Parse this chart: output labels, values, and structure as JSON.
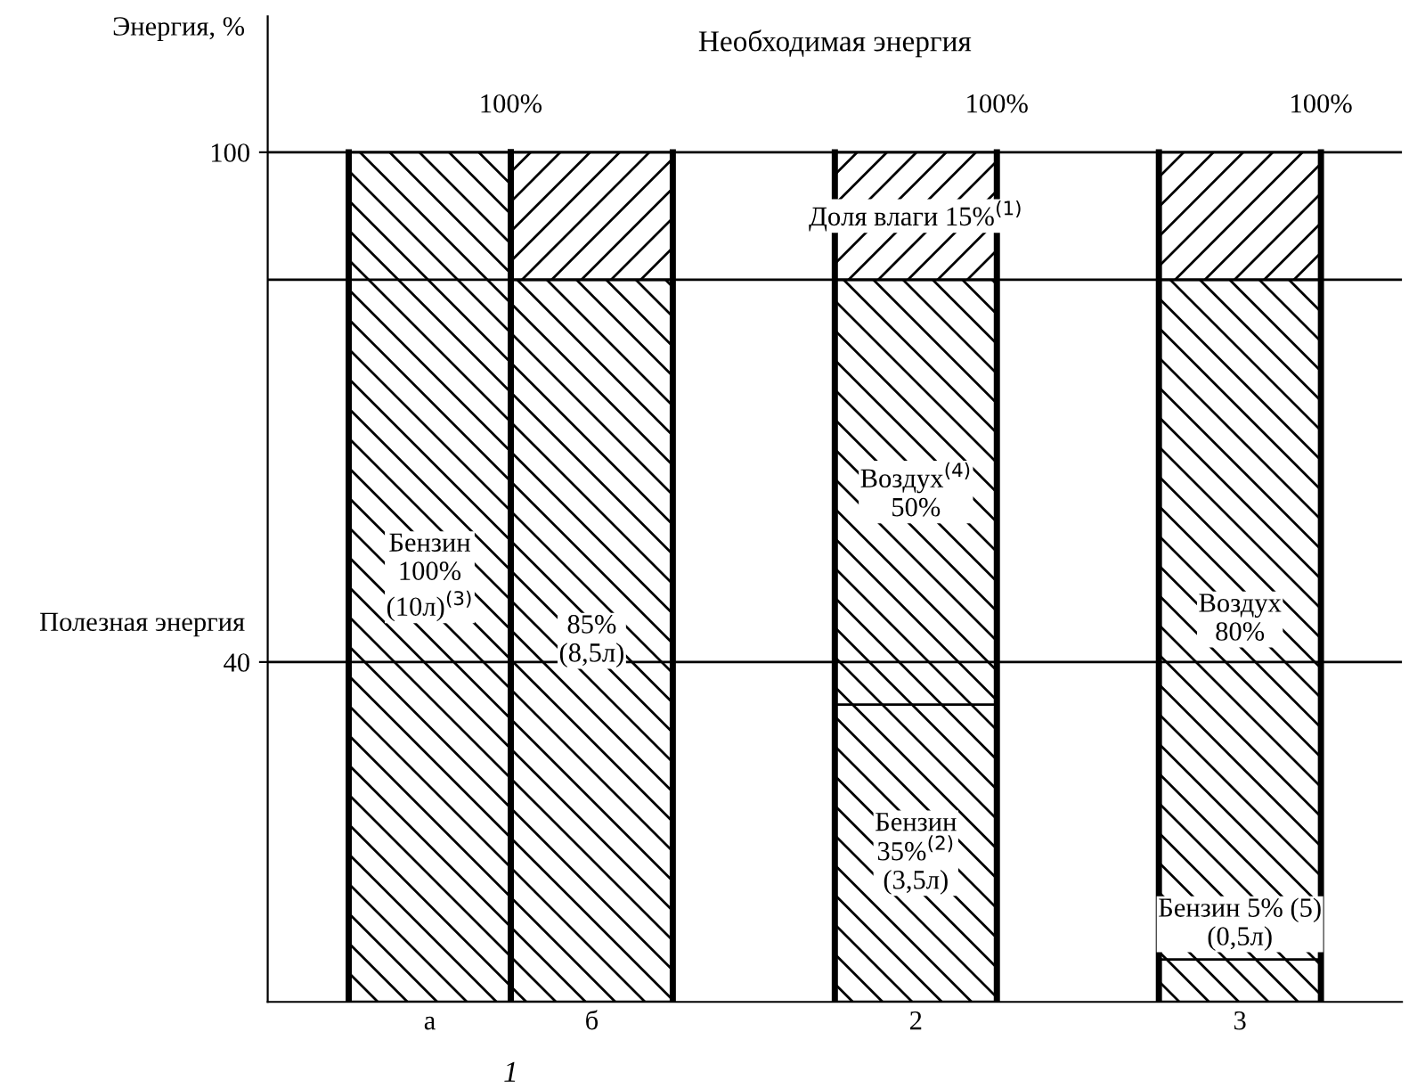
{
  "chart_data": {
    "type": "bar",
    "stacked": true,
    "title": "Необходимая энергия",
    "ylabel": "Энергия, %",
    "categories": [
      "а",
      "б",
      null,
      "2",
      null,
      "3"
    ],
    "series": [
      {
        "color": "#000000",
        "values": [
          100,
          85,
          null,
          35,
          null,
          5
        ],
        "value_labels": [
          "Бензин\n100%\n(10л)$^{(3)}$",
          "85%\n(8,5л)",
          null,
          "Бензин\n35%$^{(2)}$\n(3,5л)",
          null,
          "Бензин 5% (5)\n(0,5л)"
        ]
      },
      {
        "color": "#000000",
        "values": [
          null,
          null,
          null,
          50,
          null,
          80
        ],
        "value_labels": [
          null,
          null,
          null,
          "Воздух$^{(4)}$\n50%",
          null,
          "Воздух\n80%"
        ]
      },
      {
        "color": "#000000",
        "values": [
          null,
          15,
          null,
          15,
          null,
          15
        ],
        "value_labels": [
          null,
          null,
          null,
          "Доля влаги 15%$^{(1)}$",
          null,
          null
        ]
      }
    ],
    "totals": [
      "100%",
      null,
      null,
      "100%",
      null,
      "100%"
    ],
    "ylim": [
      0,
      116
    ],
    "yticks": [
      40,
      100
    ],
    "ref_lines": [
      {
        "axis": "y",
        "value": 100
      },
      {
        "axis": "y",
        "value": 85
      },
      {
        "axis": "y",
        "value": 40,
        "label": "Полезная энергия"
      }
    ],
    "annotations": [
      "1"
    ],
    "grid": false,
    "legend": false
  }
}
